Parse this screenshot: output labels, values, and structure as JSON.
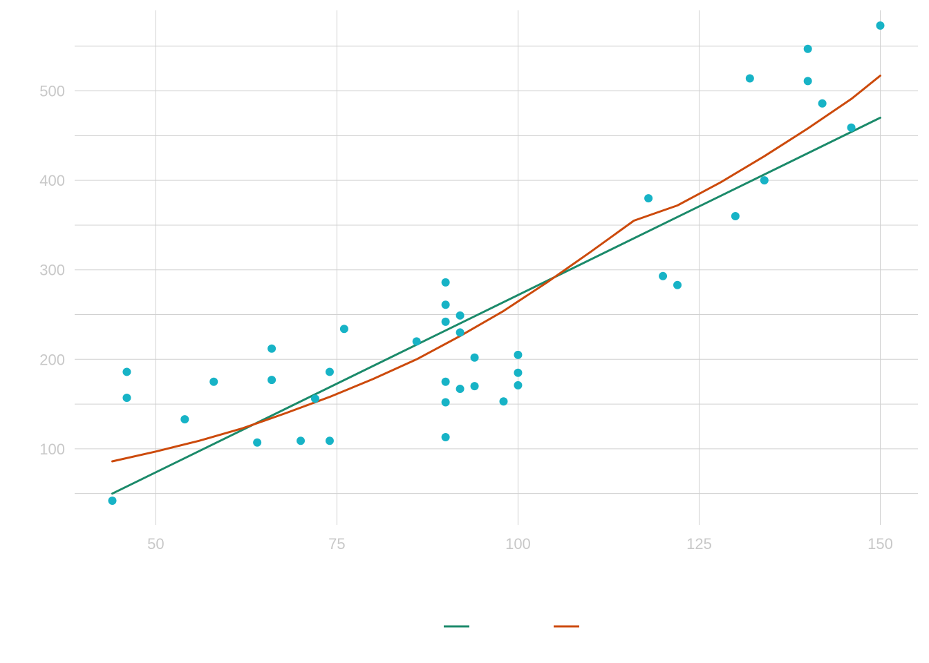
{
  "chart_data": {
    "type": "scatter",
    "title": "",
    "xlabel": "",
    "ylabel": "",
    "xlim": [
      38.8,
      155.2
    ],
    "ylim": [
      15,
      590
    ],
    "x_ticks": [
      50,
      75,
      100,
      125,
      150
    ],
    "y_ticks": [
      100,
      200,
      300,
      400,
      500
    ],
    "y_minor_ticks": [
      50,
      150,
      250,
      350,
      450,
      550
    ],
    "grid": true,
    "legend_position": "bottom",
    "colors": {
      "points": "#17b3c6",
      "linear_fit": "#1b8a6a",
      "curve_fit": "#cc4a0c",
      "grid": "#d0d0d0",
      "tick_label": "#c8c8c8"
    },
    "points": [
      {
        "x": 44,
        "y": 42
      },
      {
        "x": 46,
        "y": 186
      },
      {
        "x": 46,
        "y": 157
      },
      {
        "x": 54,
        "y": 133
      },
      {
        "x": 58,
        "y": 175
      },
      {
        "x": 64,
        "y": 107
      },
      {
        "x": 66,
        "y": 212
      },
      {
        "x": 66,
        "y": 177
      },
      {
        "x": 70,
        "y": 109
      },
      {
        "x": 72,
        "y": 156
      },
      {
        "x": 74,
        "y": 186
      },
      {
        "x": 74,
        "y": 109
      },
      {
        "x": 76,
        "y": 234
      },
      {
        "x": 86,
        "y": 220
      },
      {
        "x": 90,
        "y": 286
      },
      {
        "x": 90,
        "y": 261
      },
      {
        "x": 90,
        "y": 242
      },
      {
        "x": 90,
        "y": 175
      },
      {
        "x": 90,
        "y": 152
      },
      {
        "x": 90,
        "y": 113
      },
      {
        "x": 92,
        "y": 249
      },
      {
        "x": 92,
        "y": 230
      },
      {
        "x": 92,
        "y": 167
      },
      {
        "x": 94,
        "y": 202
      },
      {
        "x": 94,
        "y": 170
      },
      {
        "x": 98,
        "y": 153
      },
      {
        "x": 100,
        "y": 205
      },
      {
        "x": 100,
        "y": 185
      },
      {
        "x": 100,
        "y": 171
      },
      {
        "x": 118,
        "y": 380
      },
      {
        "x": 120,
        "y": 293
      },
      {
        "x": 122,
        "y": 283
      },
      {
        "x": 130,
        "y": 360
      },
      {
        "x": 132,
        "y": 514
      },
      {
        "x": 134,
        "y": 400
      },
      {
        "x": 140,
        "y": 547
      },
      {
        "x": 140,
        "y": 511
      },
      {
        "x": 142,
        "y": 486
      },
      {
        "x": 146,
        "y": 459
      },
      {
        "x": 150,
        "y": 573
      }
    ],
    "series": [
      {
        "color": "#1b8a6a",
        "x": [
          44,
          150
        ],
        "y": [
          50,
          470
        ]
      },
      {
        "color": "#cc4a0c",
        "x": [
          44,
          50,
          56,
          62,
          68,
          74,
          80,
          86,
          92,
          98,
          104,
          110,
          116,
          122,
          128,
          134,
          140,
          146,
          150
        ],
        "y": [
          86,
          97,
          109,
          123,
          140,
          158,
          178,
          200,
          226,
          254,
          286,
          320,
          355,
          372,
          398,
          427,
          458,
          491,
          517
        ]
      }
    ]
  }
}
